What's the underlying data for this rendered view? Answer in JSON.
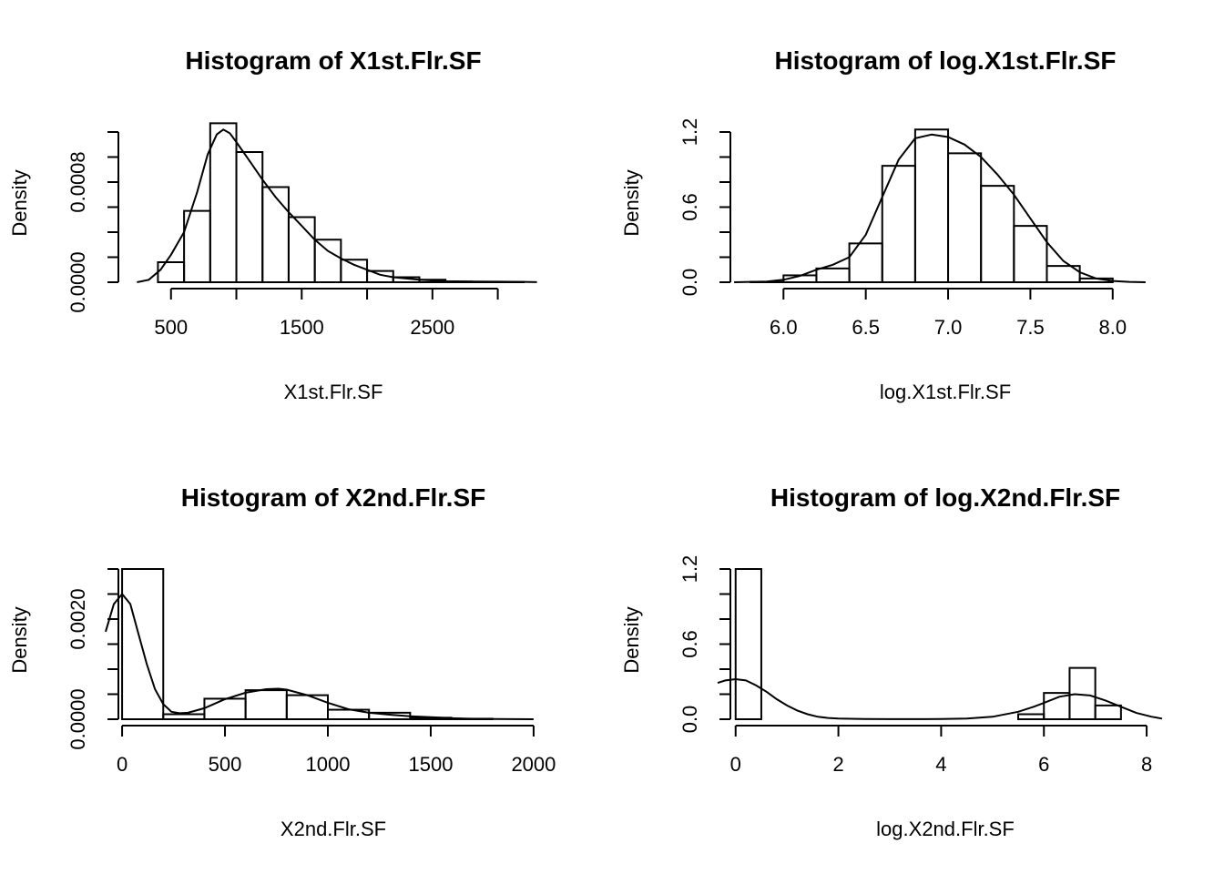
{
  "chart_data": [
    {
      "type": "bar",
      "title": "Histogram of X1st.Flr.SF",
      "xlabel": "X1st.Flr.SF",
      "ylabel": "Density",
      "xlim": [
        0,
        3400
      ],
      "ylim": [
        0,
        0.0012
      ],
      "xticks": [
        500,
        1000,
        1500,
        2000,
        2500,
        3000
      ],
      "xtick_labels": [
        "500",
        "",
        "1500",
        "",
        "2500",
        ""
      ],
      "xaxis_range": [
        500,
        3000
      ],
      "yticks": [
        0,
        0.0002,
        0.0004,
        0.0006,
        0.0008,
        0.001,
        0.0012
      ],
      "ytick_labels": [
        "0.0000",
        "",
        "",
        "",
        "0.0008",
        "",
        ""
      ],
      "bins": [
        {
          "x0": 400,
          "x1": 600,
          "density": 0.00016
        },
        {
          "x0": 600,
          "x1": 800,
          "density": 0.00057
        },
        {
          "x0": 800,
          "x1": 1000,
          "density": 0.00127
        },
        {
          "x0": 1000,
          "x1": 1200,
          "density": 0.00104
        },
        {
          "x0": 1200,
          "x1": 1400,
          "density": 0.00076
        },
        {
          "x0": 1400,
          "x1": 1600,
          "density": 0.00052
        },
        {
          "x0": 1600,
          "x1": 1800,
          "density": 0.00034
        },
        {
          "x0": 1800,
          "x1": 2000,
          "density": 0.00018
        },
        {
          "x0": 2000,
          "x1": 2200,
          "density": 9e-05
        },
        {
          "x0": 2200,
          "x1": 2400,
          "density": 4e-05
        },
        {
          "x0": 2400,
          "x1": 2600,
          "density": 2e-05
        },
        {
          "x0": 2600,
          "x1": 2800,
          "density": 5e-06
        },
        {
          "x0": 2800,
          "x1": 3000,
          "density": 2e-06
        },
        {
          "x0": 3000,
          "x1": 3200,
          "density": 2e-06
        }
      ],
      "density_curve": {
        "x": [
          240,
          330,
          420,
          500,
          600,
          700,
          780,
          850,
          900,
          950,
          1000,
          1100,
          1200,
          1300,
          1400,
          1500,
          1600,
          1700,
          1800,
          1900,
          2000,
          2100,
          2200,
          2400,
          2600,
          2800,
          3000,
          3200,
          3300
        ],
        "y": [
          0.0,
          2e-05,
          0.0001,
          0.00022,
          0.0004,
          0.00072,
          0.00102,
          0.00118,
          0.00122,
          0.00119,
          0.00112,
          0.00097,
          0.00082,
          0.00068,
          0.00056,
          0.00045,
          0.00034,
          0.00025,
          0.00019,
          0.00014,
          0.0001,
          6e-05,
          4e-05,
          2e-05,
          8e-06,
          5e-06,
          4e-06,
          3e-06,
          1e-06
        ]
      }
    },
    {
      "type": "bar",
      "title": "Histogram of log.X1st.Flr.SF",
      "xlabel": "log.X1st.Flr.SF",
      "ylabel": "Density",
      "xlim": [
        5.6,
        8.3
      ],
      "ylim": [
        0,
        1.2
      ],
      "xticks": [
        6.0,
        6.5,
        7.0,
        7.5,
        8.0
      ],
      "xtick_labels": [
        "6.0",
        "6.5",
        "7.0",
        "7.5",
        "8.0"
      ],
      "xaxis_range": [
        6.0,
        8.0
      ],
      "yticks": [
        0,
        0.2,
        0.4,
        0.6,
        0.8,
        1.0,
        1.2
      ],
      "ytick_labels": [
        "0.0",
        "",
        "",
        "0.6",
        "",
        "",
        "1.2"
      ],
      "bins": [
        {
          "x0": 5.8,
          "x1": 6.0,
          "density": 0.003
        },
        {
          "x0": 6.0,
          "x1": 6.2,
          "density": 0.055
        },
        {
          "x0": 6.2,
          "x1": 6.4,
          "density": 0.11
        },
        {
          "x0": 6.4,
          "x1": 6.6,
          "density": 0.31
        },
        {
          "x0": 6.6,
          "x1": 6.8,
          "density": 0.93
        },
        {
          "x0": 6.8,
          "x1": 7.0,
          "density": 1.22
        },
        {
          "x0": 7.0,
          "x1": 7.2,
          "density": 1.03
        },
        {
          "x0": 7.2,
          "x1": 7.4,
          "density": 0.77
        },
        {
          "x0": 7.4,
          "x1": 7.6,
          "density": 0.45
        },
        {
          "x0": 7.6,
          "x1": 7.8,
          "density": 0.13
        },
        {
          "x0": 7.8,
          "x1": 8.0,
          "density": 0.03
        }
      ],
      "density_curve": {
        "x": [
          5.7,
          5.9,
          6.0,
          6.1,
          6.2,
          6.3,
          6.4,
          6.5,
          6.6,
          6.7,
          6.8,
          6.9,
          7.0,
          7.1,
          7.2,
          7.3,
          7.4,
          7.5,
          7.6,
          7.7,
          7.8,
          7.9,
          8.0,
          8.1,
          8.2
        ],
        "y": [
          0.0,
          0.005,
          0.02,
          0.05,
          0.1,
          0.14,
          0.2,
          0.38,
          0.68,
          0.98,
          1.15,
          1.18,
          1.16,
          1.1,
          1.0,
          0.86,
          0.7,
          0.51,
          0.32,
          0.17,
          0.08,
          0.03,
          0.01,
          0.003,
          0.0
        ]
      }
    },
    {
      "type": "bar",
      "title": "Histogram of X2nd.Flr.SF",
      "xlabel": "X2nd.Flr.SF",
      "ylabel": "Density",
      "xlim": [
        -80,
        2080
      ],
      "ylim": [
        0,
        0.003
      ],
      "xticks": [
        0,
        500,
        1000,
        1500,
        2000
      ],
      "xtick_labels": [
        "0",
        "500",
        "1000",
        "1500",
        "2000"
      ],
      "xaxis_range": [
        0,
        2000
      ],
      "yticks": [
        0,
        0.0005,
        0.001,
        0.0015,
        0.002,
        0.0025,
        0.003
      ],
      "ytick_labels": [
        "0.0000",
        "",
        "",
        "",
        "0.0020",
        "",
        ""
      ],
      "bins": [
        {
          "x0": 0,
          "x1": 200,
          "density": 0.003
        },
        {
          "x0": 200,
          "x1": 400,
          "density": 0.0001
        },
        {
          "x0": 400,
          "x1": 600,
          "density": 0.00041
        },
        {
          "x0": 600,
          "x1": 800,
          "density": 0.00058
        },
        {
          "x0": 800,
          "x1": 1000,
          "density": 0.00048
        },
        {
          "x0": 1000,
          "x1": 1200,
          "density": 0.00019
        },
        {
          "x0": 1200,
          "x1": 1400,
          "density": 0.00013
        },
        {
          "x0": 1400,
          "x1": 1600,
          "density": 3e-05
        },
        {
          "x0": 1600,
          "x1": 1800,
          "density": 1e-05
        }
      ],
      "density_curve": {
        "x": [
          -80,
          -40,
          0,
          40,
          80,
          120,
          160,
          200,
          240,
          280,
          320,
          400,
          500,
          600,
          700,
          760,
          800,
          900,
          1000,
          1100,
          1200,
          1300,
          1400,
          1500,
          1600,
          1700,
          1800,
          1900,
          2000
        ],
        "y": [
          0.00175,
          0.0023,
          0.0025,
          0.0023,
          0.0017,
          0.0011,
          0.0006,
          0.0003,
          0.00015,
          0.00012,
          0.00013,
          0.00022,
          0.0004,
          0.00053,
          0.0006,
          0.00061,
          0.00059,
          0.00048,
          0.00033,
          0.0002,
          0.00013,
          9e-05,
          6e-05,
          4e-05,
          2e-05,
          1e-05,
          5e-06,
          2e-06,
          0.0
        ]
      }
    },
    {
      "type": "bar",
      "title": "Histogram of log.X2nd.Flr.SF",
      "xlabel": "log.X2nd.Flr.SF",
      "ylabel": "Density",
      "xlim": [
        -0.35,
        8.3
      ],
      "ylim": [
        0,
        1.2
      ],
      "xticks": [
        0,
        2,
        4,
        6,
        8
      ],
      "xtick_labels": [
        "0",
        "2",
        "4",
        "6",
        "8"
      ],
      "xaxis_range": [
        0,
        8
      ],
      "yticks": [
        0,
        0.2,
        0.4,
        0.6,
        0.8,
        1.0,
        1.2
      ],
      "ytick_labels": [
        "0.0",
        "",
        "",
        "0.6",
        "",
        "",
        "1.2"
      ],
      "bins": [
        {
          "x0": 0.0,
          "x1": 0.5,
          "density": 1.2
        },
        {
          "x0": 5.5,
          "x1": 6.0,
          "density": 0.04
        },
        {
          "x0": 6.0,
          "x1": 6.5,
          "density": 0.21
        },
        {
          "x0": 6.5,
          "x1": 7.0,
          "density": 0.41
        },
        {
          "x0": 7.0,
          "x1": 7.5,
          "density": 0.11
        }
      ],
      "density_curve": {
        "x": [
          -0.35,
          -0.2,
          0.0,
          0.2,
          0.4,
          0.6,
          0.8,
          1.0,
          1.2,
          1.4,
          1.6,
          1.8,
          2.0,
          2.5,
          3.0,
          3.5,
          4.0,
          4.5,
          5.0,
          5.5,
          5.8,
          6.0,
          6.3,
          6.6,
          6.9,
          7.2,
          7.5,
          7.8,
          8.1,
          8.3
        ],
        "y": [
          0.29,
          0.31,
          0.32,
          0.31,
          0.27,
          0.22,
          0.16,
          0.11,
          0.07,
          0.04,
          0.02,
          0.01,
          0.005,
          0.002,
          0.001,
          0.001,
          0.002,
          0.006,
          0.02,
          0.06,
          0.1,
          0.13,
          0.18,
          0.2,
          0.19,
          0.15,
          0.1,
          0.05,
          0.02,
          0.005
        ]
      }
    }
  ]
}
